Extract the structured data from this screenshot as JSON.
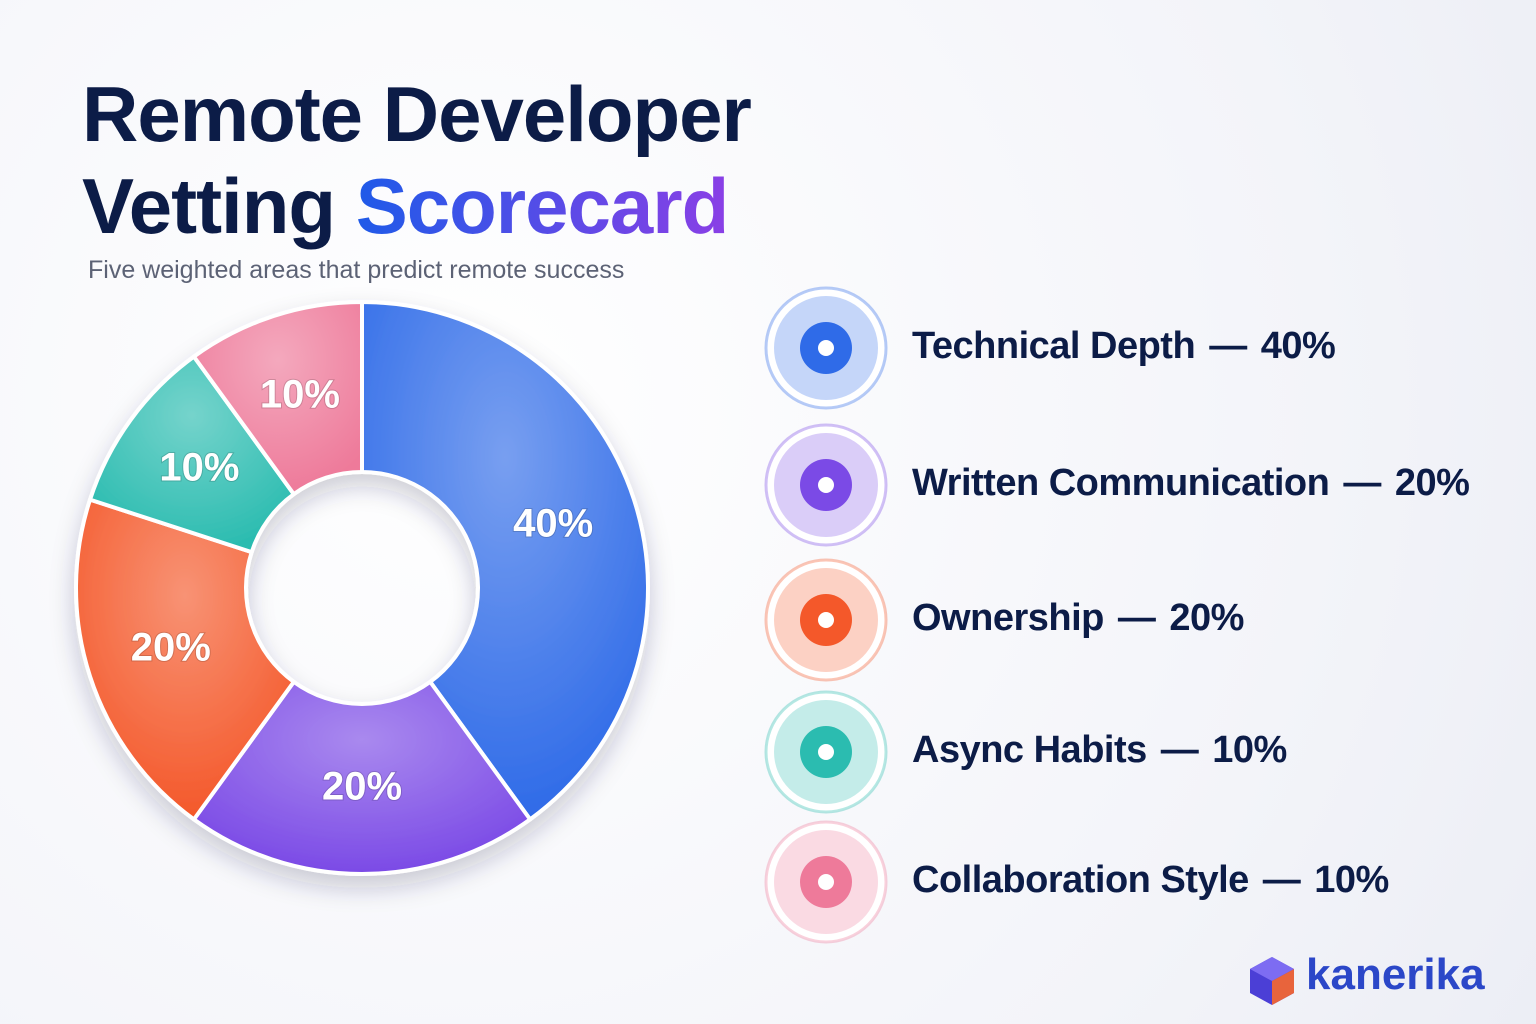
{
  "chart_data": {
    "type": "donut",
    "title": "Remote Developer Vetting",
    "title_highlight": "Scorecard",
    "subtitle": "Five weighted areas that predict remote success",
    "categories": [
      "Technical Depth",
      "Written Communication",
      "Ownership",
      "Async Habits",
      "Collaboration Style"
    ],
    "values": [
      40,
      20,
      20,
      10,
      10
    ],
    "value_labels": [
      "40%",
      "20%",
      "20%",
      "10%",
      "10%"
    ],
    "colors": [
      "#2f6be8",
      "#7b4ae6",
      "#f4582a",
      "#2bbcb0",
      "#ee7a9a"
    ],
    "separator": "—",
    "brand": "kanerika"
  }
}
